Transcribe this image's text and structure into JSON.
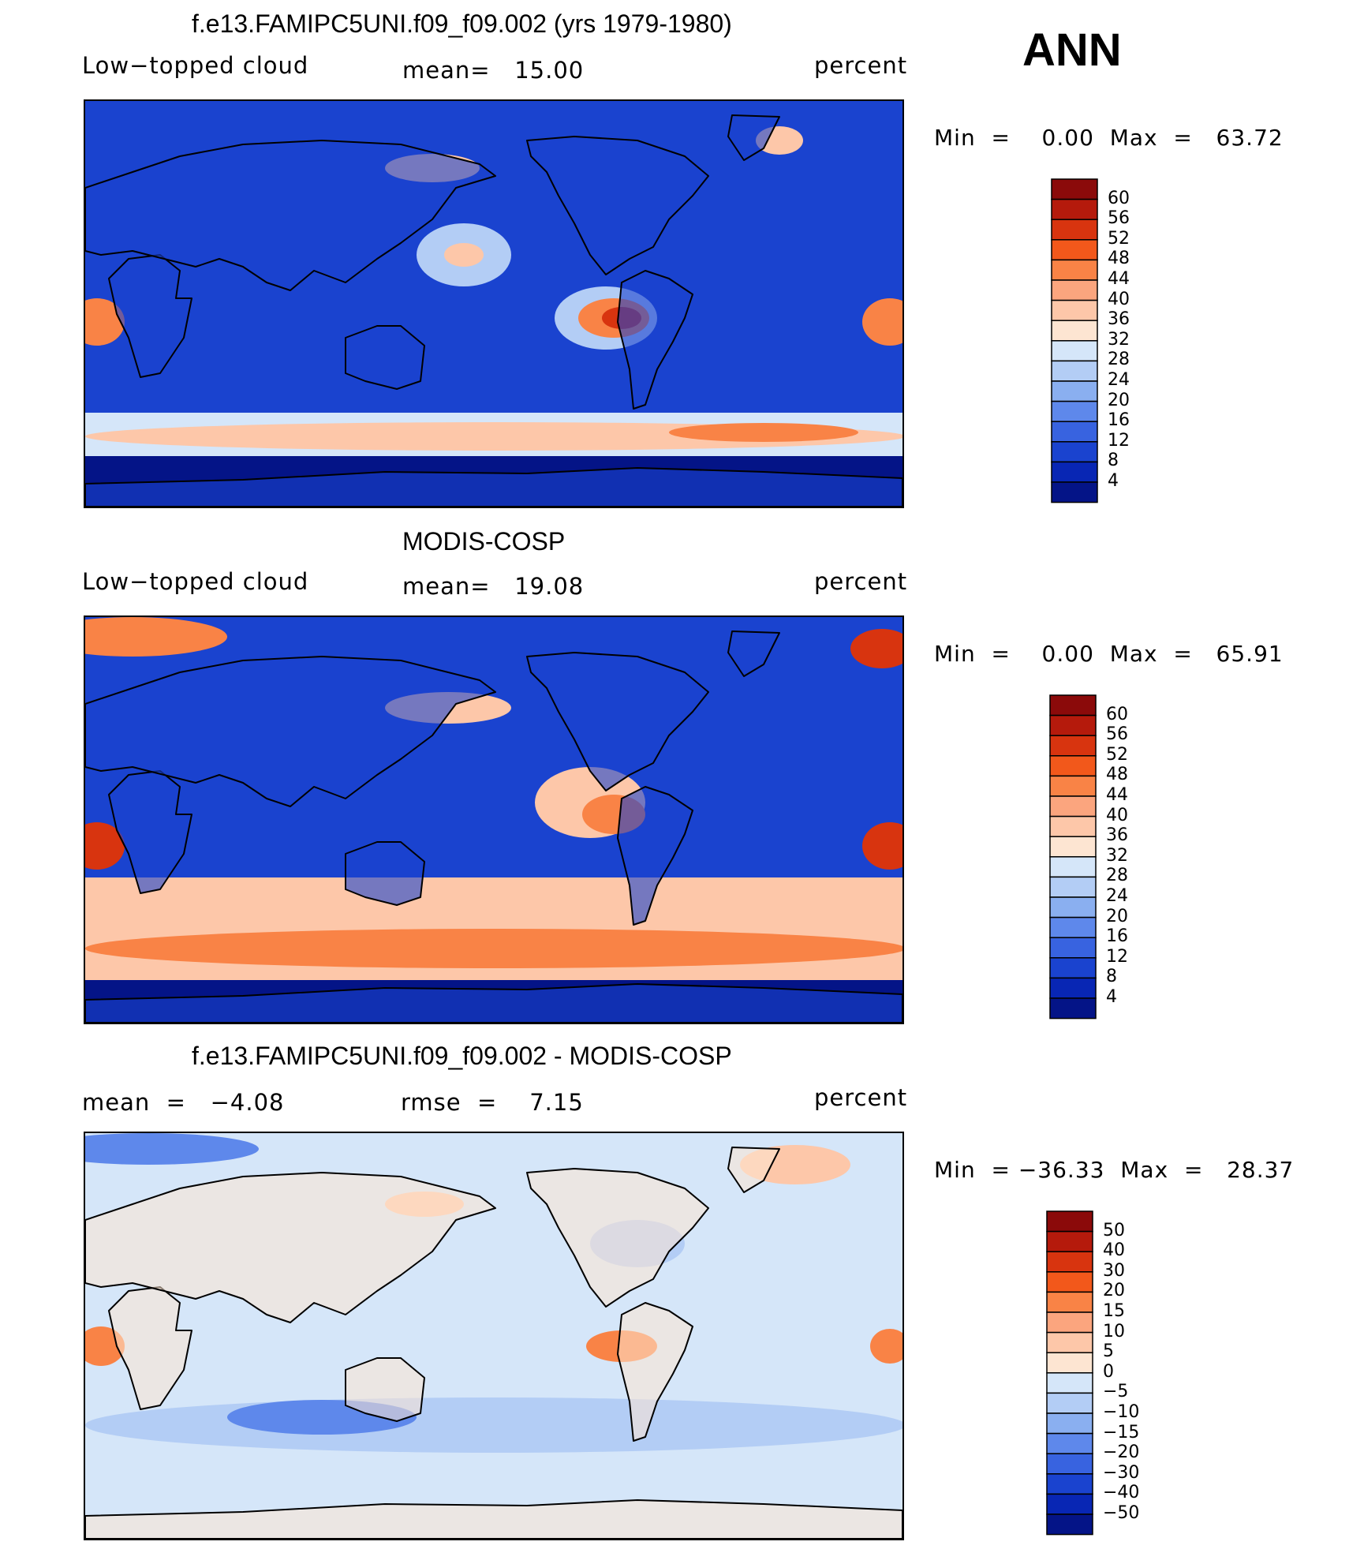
{
  "season": "ANN",
  "panels": [
    {
      "title": "f.e13.FAMIPC5UNI.f09_f09.002 (yrs 1979-1980)",
      "left_label": "Low−topped cloud",
      "center_label": "mean=   15.00",
      "right_label": "percent",
      "minmax": "Min  =    0.00  Max  =   63.72",
      "colorbar_type": "abs",
      "map_icon": "world-map-model-low-cloud"
    },
    {
      "title": "MODIS-COSP",
      "left_label": "Low−topped cloud",
      "center_label": "mean=   19.08",
      "right_label": "percent",
      "minmax": "Min  =    0.00  Max  =   65.91",
      "colorbar_type": "abs",
      "map_icon": "world-map-obs-low-cloud"
    },
    {
      "title": "f.e13.FAMIPC5UNI.f09_f09.002 - MODIS-COSP",
      "left_label": "mean  =   −4.08",
      "center_label": "rmse  =    7.15",
      "right_label": "percent",
      "minmax": "Min  = −36.33  Max  =   28.37",
      "colorbar_type": "diff",
      "map_icon": "world-map-difference"
    }
  ],
  "colorbars": {
    "abs": {
      "labels": [
        "60",
        "56",
        "52",
        "48",
        "44",
        "40",
        "36",
        "32",
        "28",
        "24",
        "20",
        "16",
        "12",
        "8",
        "4"
      ],
      "colors": [
        "#8b0a0a",
        "#b51a0c",
        "#d8340f",
        "#f2581b",
        "#f98346",
        "#fba57e",
        "#fdc7a9",
        "#fde5d2",
        "#d5e6f9",
        "#b3cdf5",
        "#8aaff0",
        "#5e88eb",
        "#3863e0",
        "#1a43cf",
        "#0826b4",
        "#041487"
      ]
    },
    "diff": {
      "labels": [
        "50",
        "40",
        "30",
        "20",
        "15",
        "10",
        "5",
        "0",
        "−5",
        "−10",
        "−15",
        "−20",
        "−30",
        "−40",
        "−50"
      ],
      "colors": [
        "#8b0a0a",
        "#b51a0c",
        "#d8340f",
        "#f2581b",
        "#f98346",
        "#fba57e",
        "#fdc7a9",
        "#fde5d2",
        "#d5e6f9",
        "#b3cdf5",
        "#8aaff0",
        "#5e88eb",
        "#3863e0",
        "#1a43cf",
        "#0826b4",
        "#041487"
      ]
    }
  },
  "palette": {
    "ocean_dark": "#041487",
    "ocean_mid": "#1a43cf",
    "ocean_light": "#5e88eb",
    "pale_blue": "#b3cdf5",
    "very_pale_blue": "#d5e6f9",
    "peach": "#fdc7a9",
    "orange": "#f98346",
    "red": "#d8340f",
    "dark_red": "#8b0a0a",
    "coast": "#000000"
  }
}
